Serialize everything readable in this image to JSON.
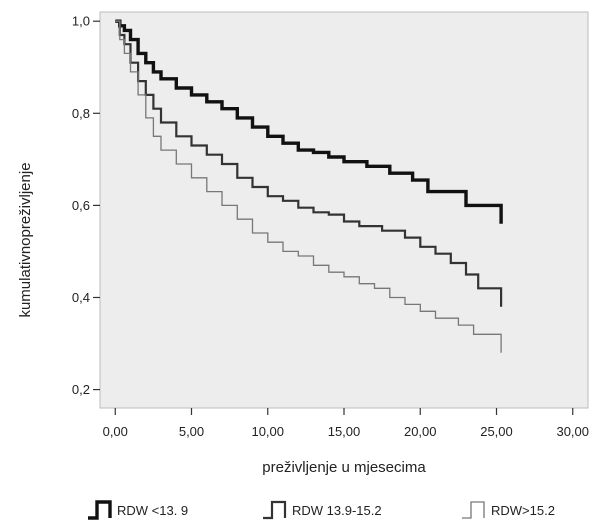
{
  "chart_data": {
    "type": "line",
    "step": true,
    "xlabel": "preživljenje u mjesecima",
    "ylabel": "kumulativnopreživljenje",
    "xlim": [
      -1,
      31
    ],
    "ylim": [
      0.16,
      1.02
    ],
    "xticks": [
      0,
      5,
      10,
      15,
      20,
      25,
      30
    ],
    "xtick_labels": [
      "0,00",
      "5,00",
      "10,00",
      "15,00",
      "20,00",
      "25,00",
      "30,00"
    ],
    "yticks": [
      0.2,
      0.4,
      0.6,
      0.8,
      1.0
    ],
    "ytick_labels": [
      "0,2",
      "0,4",
      "0,6",
      "0,8",
      "1,0"
    ],
    "grid": false,
    "legend_position": "bottom",
    "plot_background": "#ededed",
    "series": [
      {
        "name": "RDW <13. 9",
        "color": "#111111",
        "stroke_weight": "heavy",
        "points": [
          [
            0,
            1.0
          ],
          [
            0.3,
            0.99
          ],
          [
            0.6,
            0.98
          ],
          [
            1.0,
            0.96
          ],
          [
            1.5,
            0.93
          ],
          [
            2.0,
            0.91
          ],
          [
            2.5,
            0.89
          ],
          [
            3.0,
            0.875
          ],
          [
            4.0,
            0.855
          ],
          [
            5.0,
            0.84
          ],
          [
            6.0,
            0.825
          ],
          [
            7.0,
            0.81
          ],
          [
            8.0,
            0.79
          ],
          [
            9.0,
            0.77
          ],
          [
            10.0,
            0.75
          ],
          [
            11.0,
            0.735
          ],
          [
            12.0,
            0.72
          ],
          [
            13.0,
            0.715
          ],
          [
            14.0,
            0.705
          ],
          [
            15.0,
            0.695
          ],
          [
            16.5,
            0.685
          ],
          [
            18.0,
            0.67
          ],
          [
            19.5,
            0.655
          ],
          [
            20.5,
            0.63
          ],
          [
            23.0,
            0.6
          ],
          [
            25.3,
            0.56
          ]
        ]
      },
      {
        "name": "RDW 13.9-15.2",
        "color": "#333333",
        "stroke_weight": "medium",
        "points": [
          [
            0,
            1.0
          ],
          [
            0.3,
            0.97
          ],
          [
            0.6,
            0.95
          ],
          [
            1.0,
            0.91
          ],
          [
            1.5,
            0.87
          ],
          [
            2.0,
            0.84
          ],
          [
            2.5,
            0.81
          ],
          [
            3.0,
            0.78
          ],
          [
            4.0,
            0.75
          ],
          [
            5.0,
            0.73
          ],
          [
            6.0,
            0.71
          ],
          [
            7.0,
            0.69
          ],
          [
            8.0,
            0.66
          ],
          [
            9.0,
            0.64
          ],
          [
            10.0,
            0.62
          ],
          [
            11.0,
            0.61
          ],
          [
            12.0,
            0.595
          ],
          [
            13.0,
            0.585
          ],
          [
            14.0,
            0.58
          ],
          [
            15.0,
            0.565
          ],
          [
            16.0,
            0.555
          ],
          [
            17.5,
            0.545
          ],
          [
            19.0,
            0.53
          ],
          [
            20.0,
            0.51
          ],
          [
            21.0,
            0.495
          ],
          [
            22.0,
            0.475
          ],
          [
            23.0,
            0.45
          ],
          [
            23.8,
            0.42
          ],
          [
            25.3,
            0.38
          ]
        ]
      },
      {
        "name": "RDW>15.2",
        "color": "#777777",
        "stroke_weight": "light",
        "points": [
          [
            0,
            1.0
          ],
          [
            0.3,
            0.96
          ],
          [
            0.6,
            0.93
          ],
          [
            1.0,
            0.89
          ],
          [
            1.5,
            0.84
          ],
          [
            2.0,
            0.79
          ],
          [
            2.5,
            0.75
          ],
          [
            3.0,
            0.72
          ],
          [
            4.0,
            0.69
          ],
          [
            5.0,
            0.66
          ],
          [
            6.0,
            0.63
          ],
          [
            7.0,
            0.6
          ],
          [
            8.0,
            0.57
          ],
          [
            9.0,
            0.54
          ],
          [
            10.0,
            0.52
          ],
          [
            11.0,
            0.5
          ],
          [
            12.0,
            0.49
          ],
          [
            13.0,
            0.47
          ],
          [
            14.0,
            0.455
          ],
          [
            15.0,
            0.445
          ],
          [
            16.0,
            0.43
          ],
          [
            17.0,
            0.42
          ],
          [
            18.0,
            0.4
          ],
          [
            19.0,
            0.385
          ],
          [
            20.0,
            0.37
          ],
          [
            21.0,
            0.355
          ],
          [
            22.5,
            0.34
          ],
          [
            23.5,
            0.32
          ],
          [
            25.3,
            0.28
          ]
        ]
      }
    ]
  }
}
